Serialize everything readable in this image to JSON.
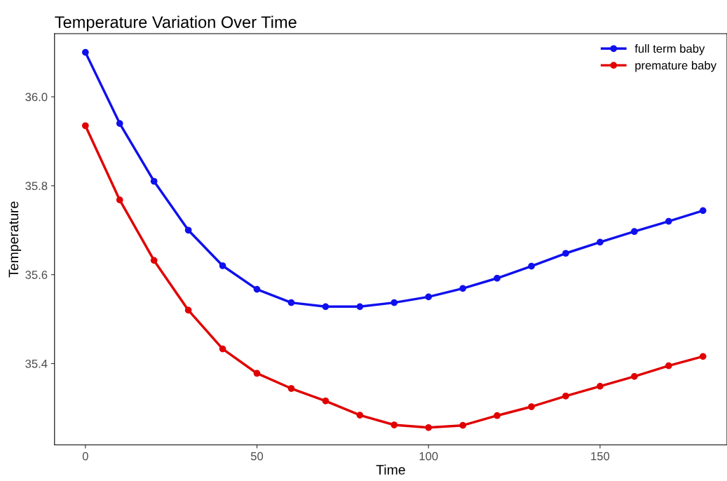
{
  "chart_data": {
    "type": "line",
    "title": "Temperature Variation Over Time",
    "xlabel": "Time",
    "ylabel": "Temperature",
    "x": [
      0,
      10,
      20,
      30,
      40,
      50,
      60,
      70,
      80,
      90,
      100,
      110,
      120,
      130,
      140,
      150,
      160,
      170,
      180
    ],
    "series": [
      {
        "name": "full term baby",
        "color": "#1010ee",
        "values": [
          36.1,
          35.94,
          35.81,
          35.7,
          35.62,
          35.567,
          35.537,
          35.528,
          35.528,
          35.537,
          35.55,
          35.569,
          35.592,
          35.619,
          35.648,
          35.673,
          35.697,
          35.72,
          35.744
        ]
      },
      {
        "name": "premature baby",
        "color": "#e00000",
        "values": [
          35.935,
          35.768,
          35.632,
          35.52,
          35.433,
          35.378,
          35.344,
          35.316,
          35.284,
          35.262,
          35.256,
          35.261,
          35.283,
          35.303,
          35.327,
          35.349,
          35.371,
          35.395,
          35.416
        ]
      }
    ],
    "xlim": [
      -9,
      187
    ],
    "ylim": [
      35.217,
      36.142
    ],
    "xticks": [
      0,
      50,
      100,
      150
    ],
    "yticks": [
      {
        "value": 35.4,
        "label": "35.4"
      },
      {
        "value": 35.6,
        "label": "35.6"
      },
      {
        "value": 35.8,
        "label": "35.8"
      },
      {
        "value": 36.0,
        "label": "36.0"
      }
    ],
    "grid": false,
    "legend": "top right",
    "marker": "circle",
    "line_style": "solid"
  }
}
